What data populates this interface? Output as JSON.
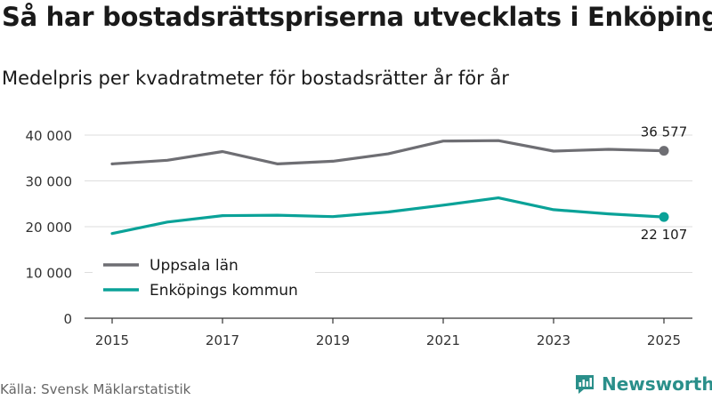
{
  "title": "Så har bostadsrättspriserna utvecklats i Enköping",
  "subtitle": "Medelpris per kvadratmeter för bostadsrätter år för år",
  "source": "Källa: Svensk Mäklarstatistik",
  "brand": "Newsworthy",
  "colors": {
    "uppsala": "#6e6e73",
    "enkoping": "#0aa298",
    "grid": "#dddddd",
    "axis": "#333333",
    "brand": "#2a8f8a"
  },
  "chart_data": {
    "type": "line",
    "title": "Så har bostadsrättspriserna utvecklats i Enköping",
    "subtitle": "Medelpris per kvadratmeter för bostadsrätter år för år",
    "xlabel": "",
    "ylabel": "",
    "x": [
      2015,
      2016,
      2017,
      2018,
      2019,
      2020,
      2021,
      2022,
      2023,
      2024,
      2025
    ],
    "xticks": [
      "2015",
      "2017",
      "2019",
      "2021",
      "2023",
      "2025"
    ],
    "yticks": [
      "0",
      "10 000",
      "20 000",
      "30 000",
      "40 000"
    ],
    "ytick_values": [
      0,
      10000,
      20000,
      30000,
      40000
    ],
    "ylim": [
      0,
      40000
    ],
    "grid": true,
    "legend_position": "bottom-left",
    "series": [
      {
        "name": "Uppsala län",
        "color_key": "uppsala",
        "values": [
          33700,
          34500,
          36400,
          33700,
          34300,
          35900,
          38700,
          38800,
          36500,
          36900,
          36577
        ],
        "end_label": "36 577"
      },
      {
        "name": "Enköpings kommun",
        "color_key": "enkoping",
        "values": [
          18500,
          21000,
          22400,
          22500,
          22200,
          23200,
          24700,
          26300,
          23700,
          22800,
          22107
        ],
        "end_label": "22 107"
      }
    ]
  }
}
